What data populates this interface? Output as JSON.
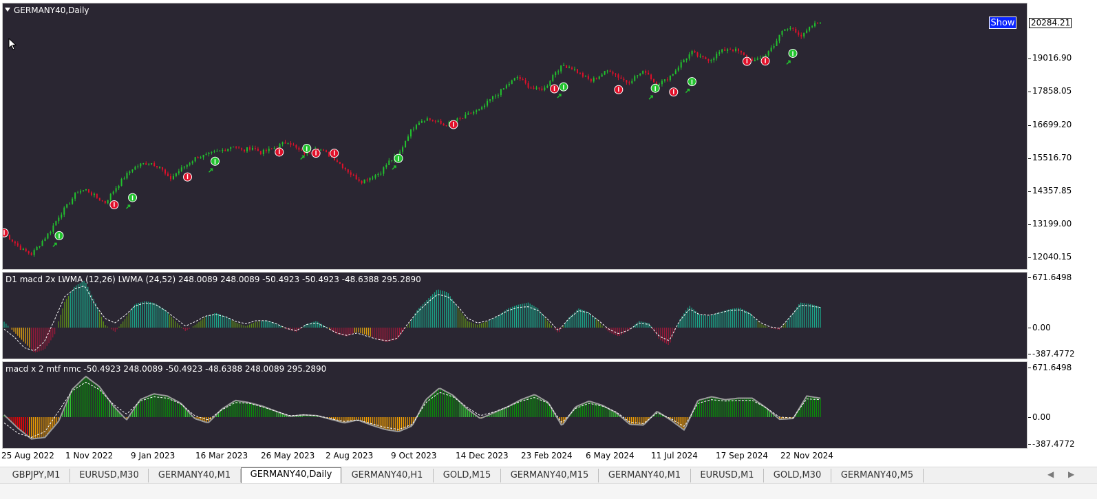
{
  "main_chart": {
    "title": "GERMANY40,Daily",
    "show_button": "Show",
    "current_price": "20284.21",
    "price_labels": [
      "19016.90",
      "17858.05",
      "16699.20",
      "15516.70",
      "14357.85",
      "13199.00",
      "12040.15"
    ]
  },
  "indicator1": {
    "title": "D1 macd 2x LWMA (12,26) LWMA (24,52)  248.0089 248.0089 -50.4923 -50.4923 -48.6388 295.2890",
    "labels": [
      "671.6498",
      "0.00",
      "-387.4772"
    ]
  },
  "indicator2": {
    "title": "macd x 2 mtf nmc -50.4923 248.0089 -50.4923 -48.6388 248.0089 295.2890",
    "labels": [
      "671.6498",
      "0.00",
      "-387.4772"
    ]
  },
  "time_axis": [
    "25 Aug 2022",
    "1 Nov 2022",
    "9 Jan 2023",
    "16 Mar 2023",
    "26 May 2023",
    "2 Aug 2023",
    "9 Oct 2023",
    "14 Dec 2023",
    "23 Feb 2024",
    "6 May 2024",
    "11 Jul 2024",
    "17 Sep 2024",
    "22 Nov 2024"
  ],
  "tabs": [
    {
      "label": "GBPJPY,M1"
    },
    {
      "label": "EURUSD,M30"
    },
    {
      "label": "GERMANY40,M1"
    },
    {
      "label": "GERMANY40,Daily",
      "active": true
    },
    {
      "label": "GERMANY40,H1"
    },
    {
      "label": "GOLD,M15"
    },
    {
      "label": "GERMANY40,M15"
    },
    {
      "label": "GERMANY40,M1"
    },
    {
      "label": "EURUSD,M1"
    },
    {
      "label": "GOLD,M30"
    },
    {
      "label": "GERMANY40,M5"
    }
  ],
  "colors": {
    "chart_bg": "#2a2632",
    "bull": "#22c32e",
    "bear": "#e0102a",
    "macd_teal": "#1aa88a",
    "macd_olive": "#5a8a1a",
    "macd_maroon": "#9a1a3a",
    "macd_orange": "#e0a010",
    "hist_green": "#0b8a0b",
    "hist_red": "#ff0000",
    "hist_orange": "#f5a000",
    "show_button": "#0a24ff"
  },
  "icons": {
    "collapse": "triangle-down-icon",
    "cursor": "mouse-pointer-icon",
    "scroll_left": "chevron-left-icon",
    "scroll_right": "chevron-right-icon"
  },
  "price_series": [
    12900,
    12600,
    12300,
    12150,
    12550,
    12950,
    13500,
    13900,
    14350,
    14400,
    14150,
    13950,
    14400,
    14800,
    15150,
    15300,
    15350,
    15200,
    14750,
    15050,
    15300,
    15550,
    15600,
    15700,
    15800,
    15950,
    15750,
    15900,
    15700,
    15800,
    15950,
    16100,
    15800,
    15650,
    15900,
    15700,
    15500,
    15200,
    14900,
    14700,
    14850,
    15000,
    15400,
    15600,
    16300,
    16750,
    16900,
    16800,
    16650,
    16800,
    16900,
    17100,
    17200,
    17550,
    17800,
    18100,
    18350,
    18050,
    17900,
    17950,
    18500,
    18750,
    18650,
    18400,
    18200,
    18400,
    18600,
    18350,
    18150,
    18400,
    18550,
    18100,
    18200,
    18500,
    18900,
    19200,
    19000,
    18950,
    19200,
    19350,
    19250,
    19000,
    18900,
    19100,
    19500,
    20000,
    20050,
    19750,
    20100,
    20284
  ],
  "signals_bear": [
    [
      0,
      12900
    ],
    [
      12,
      13880
    ],
    [
      20,
      14850
    ],
    [
      30,
      15720
    ],
    [
      34,
      15680
    ],
    [
      36,
      15680
    ],
    [
      49,
      16680
    ],
    [
      60,
      17930
    ],
    [
      67,
      17900
    ],
    [
      73,
      17820
    ],
    [
      81,
      18890
    ],
    [
      83,
      18900
    ]
  ],
  "signals_bull": [
    [
      6,
      12800
    ],
    [
      14,
      14130
    ],
    [
      23,
      15400
    ],
    [
      33,
      15850
    ],
    [
      43,
      15500
    ],
    [
      61,
      18000
    ],
    [
      71,
      17950
    ],
    [
      75,
      18180
    ],
    [
      86,
      19170
    ]
  ],
  "macd_d1_main": [
    80,
    -60,
    -200,
    -340,
    -300,
    -100,
    350,
    560,
    640,
    360,
    40,
    -60,
    120,
    320,
    360,
    330,
    240,
    90,
    -50,
    40,
    150,
    200,
    150,
    70,
    20,
    80,
    100,
    60,
    -20,
    -60,
    50,
    90,
    10,
    -90,
    -120,
    -60,
    -100,
    -160,
    -200,
    -160,
    20,
    240,
    380,
    520,
    480,
    280,
    90,
    40,
    90,
    160,
    260,
    310,
    340,
    260,
    80,
    -80,
    130,
    260,
    210,
    80,
    -60,
    -120,
    -40,
    90,
    60,
    -160,
    -240,
    100,
    300,
    180,
    160,
    210,
    250,
    270,
    200,
    60,
    -10,
    -30,
    150,
    340,
    320,
    280
  ],
  "macd_d1_signal": [
    -20,
    -120,
    -260,
    -300,
    -180,
    100,
    400,
    500,
    540,
    300,
    120,
    60,
    160,
    280,
    320,
    300,
    220,
    120,
    20,
    80,
    150,
    170,
    140,
    80,
    50,
    90,
    90,
    50,
    -10,
    -40,
    40,
    60,
    0,
    -70,
    -100,
    -70,
    -110,
    -150,
    -170,
    -140,
    40,
    200,
    320,
    430,
    400,
    280,
    120,
    60,
    90,
    150,
    220,
    260,
    270,
    220,
    100,
    -40,
    110,
    220,
    190,
    90,
    -20,
    -80,
    -30,
    60,
    40,
    -110,
    -170,
    80,
    240,
    170,
    160,
    190,
    220,
    230,
    180,
    70,
    10,
    -10,
    140,
    290,
    280,
    260
  ],
  "macd_mtf_main": [
    30,
    -150,
    -300,
    -280,
    -60,
    380,
    560,
    420,
    160,
    -40,
    240,
    320,
    290,
    190,
    -20,
    -80,
    110,
    230,
    200,
    150,
    80,
    10,
    30,
    20,
    -30,
    -80,
    -40,
    -110,
    -170,
    -200,
    -120,
    240,
    400,
    300,
    120,
    -20,
    60,
    140,
    240,
    310,
    200,
    -120,
    140,
    220,
    160,
    60,
    -100,
    -110,
    80,
    -40,
    -180,
    230,
    280,
    240,
    260,
    260,
    130,
    -30,
    -20,
    290,
    260
  ],
  "macd_mtf_signal": [
    -80,
    -220,
    -280,
    -200,
    80,
    360,
    480,
    380,
    180,
    40,
    220,
    280,
    260,
    180,
    20,
    -40,
    100,
    200,
    190,
    140,
    80,
    20,
    30,
    20,
    -20,
    -60,
    -40,
    -90,
    -140,
    -170,
    -100,
    200,
    340,
    280,
    140,
    20,
    70,
    140,
    220,
    270,
    190,
    -80,
    120,
    190,
    150,
    70,
    -70,
    -90,
    60,
    -20,
    -130,
    190,
    240,
    220,
    230,
    230,
    130,
    0,
    -10,
    250,
    240
  ]
}
